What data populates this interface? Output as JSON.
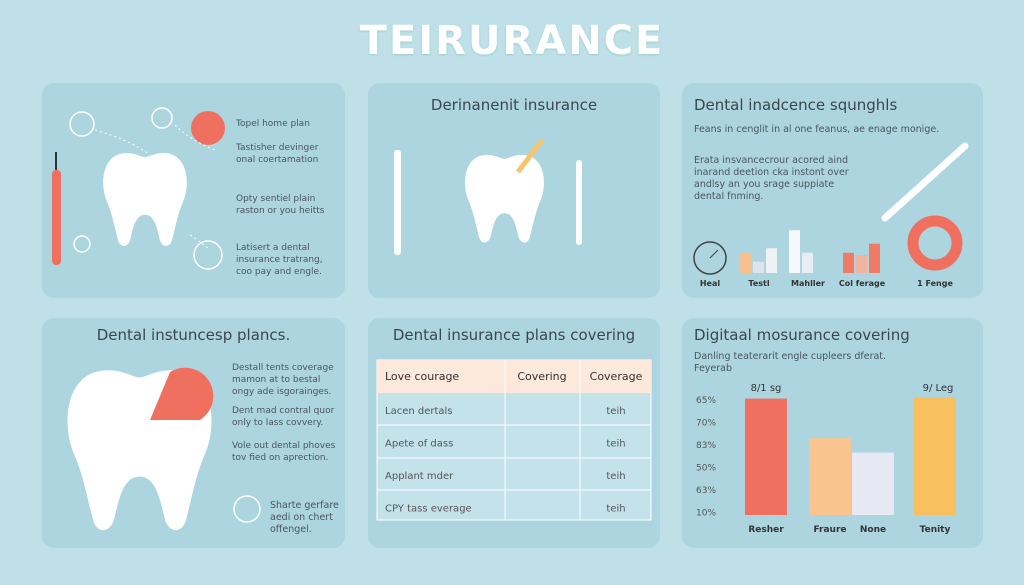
{
  "title": "TEIRURANCE",
  "panels": [
    {
      "items": [
        "Topel home plan",
        "Tastisher devinger onal coertamation",
        "Opty sentiel plain raston or you heitts",
        "Latisert a dental insurance tratrang, coo pay and engle."
      ]
    },
    {
      "title": "Derinanenit insurance"
    },
    {
      "title": "Dental inadcence squnghls",
      "subtitle": "Feans in cenglit in al one feanus, ae enage monige.",
      "text": "Erata insvancecrour acored aind inarand deetion cka instont over andlsy an you srage suppiate dental fnming.",
      "chart_data": {
        "type": "bar",
        "categories": [
          "Heal",
          "Testl",
          "Mahller",
          "Col ferage",
          "1 Fenge"
        ],
        "ylim": [
          0,
          100
        ],
        "series": [
          {
            "values": [
              null,
              45,
              95,
              45,
              null
            ],
            "colors": [
              null,
              "#f7c08f",
              "#f6f8fb",
              "#f07a66",
              null
            ]
          },
          {
            "values": [
              null,
              25,
              45,
              40,
              null
            ],
            "colors": [
              null,
              "#dfe3ec",
              "#e8edf2",
              "#f2b2a0",
              null
            ]
          },
          {
            "values": [
              null,
              55,
              null,
              65,
              null
            ],
            "colors": [
              null,
              "#eef2f6",
              null,
              "#f07a66",
              null
            ]
          }
        ]
      }
    },
    {
      "title": "Dental instuncesp plancs.",
      "items": [
        "Destall tents coverage mamon at to bestal ongy ade isgorainges.",
        "Dent mad contral quor only to lass covvery.",
        "Vole out dental phoves tov fied on aprection."
      ],
      "note": "Sharte gerfare aedi on chert offengel."
    },
    {
      "title": "Dental insurance plans covering",
      "table": {
        "header": [
          "Love courage",
          "Covering",
          "Coverage"
        ],
        "rows": [
          {
            "label": "Lacen dertals",
            "value": "teih"
          },
          {
            "label": "Apete of dass",
            "value": "teih"
          },
          {
            "label": "Applant mder",
            "value": "teih"
          },
          {
            "label": "CPY tass everage",
            "value": "teih"
          }
        ]
      }
    },
    {
      "title": "Digitaal mosurance covering",
      "subtitle": "Danling teaterarit engle cupleers dferat.",
      "subtitle2": "Feyerab",
      "chart_data": {
        "type": "bar",
        "categories": [
          "Resher",
          "Fraure",
          "None",
          "Tenity"
        ],
        "values": [
          97,
          64,
          52,
          98
        ],
        "colors": [
          "#f07060",
          "#f9c48f",
          "#e6e8f4",
          "#f9c060"
        ],
        "ylim": [
          0,
          100
        ],
        "y_labels": [
          "65%",
          "70%",
          "83%",
          "50%",
          "63%",
          "10%"
        ],
        "annotations": [
          "8/1 sg",
          "9/ Leg"
        ]
      }
    }
  ]
}
